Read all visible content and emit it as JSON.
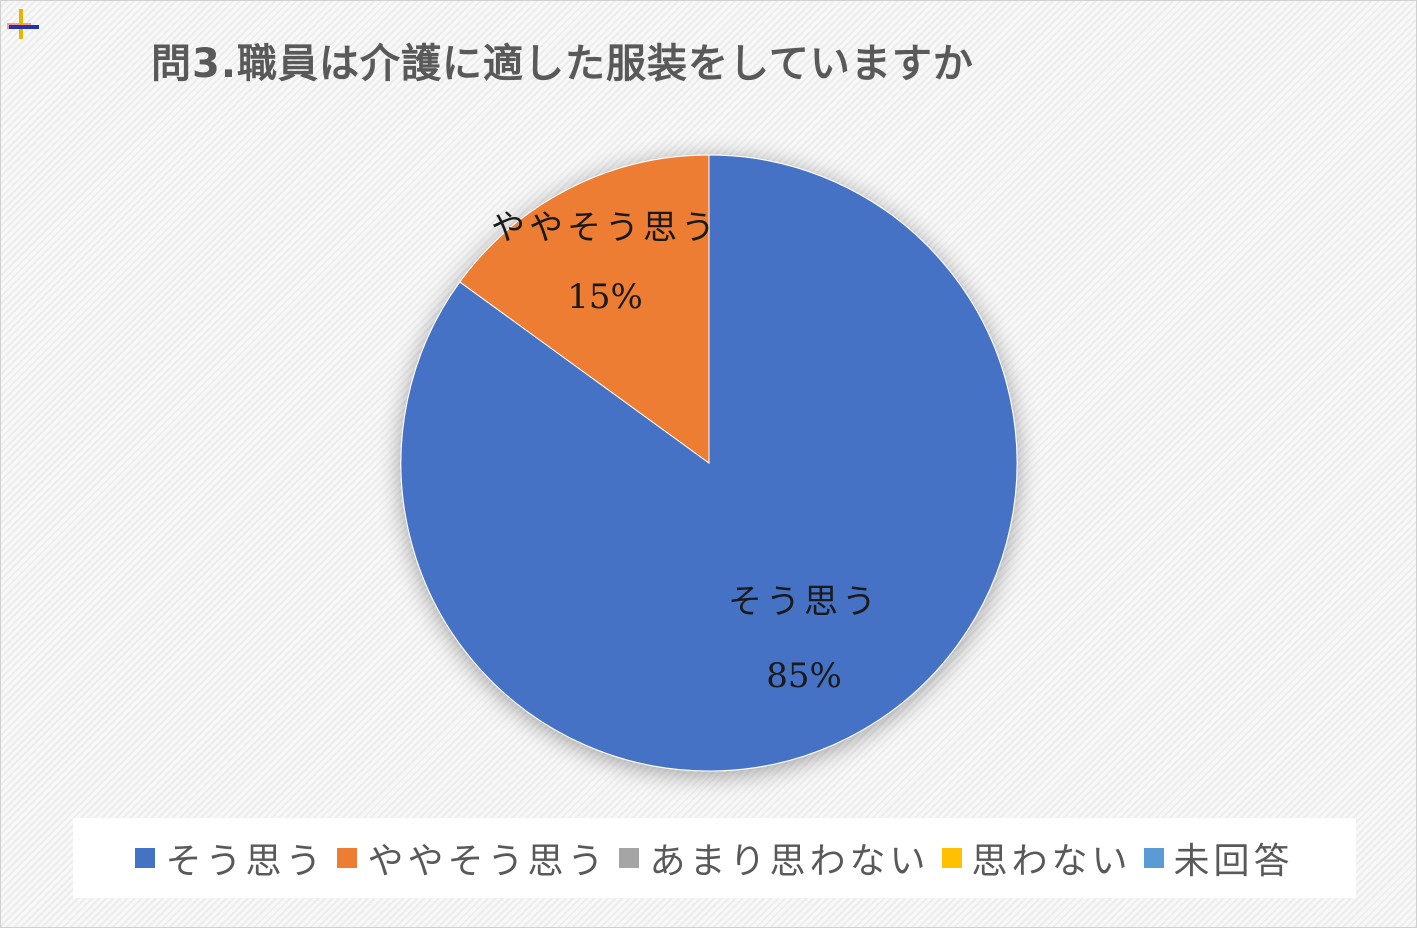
{
  "title": "問3.職員は介護に適した服装をしていますか",
  "colors": {
    "legend_text": "#595959",
    "label_text": "#1a1a1a"
  },
  "chart_data": {
    "type": "pie",
    "title": "問3.職員は介護に適した服装をしていますか",
    "unit": "%",
    "start_angle_deg": 0,
    "direction": "clockwise",
    "legend_position": "bottom",
    "slices": [
      {
        "label": "そう思う",
        "value": 85,
        "color": "#4472C4",
        "data_label": "85%"
      },
      {
        "label": "ややそう思う",
        "value": 15,
        "color": "#ED7D31",
        "data_label": "15%"
      },
      {
        "label": "あまり思わない",
        "value": 0,
        "color": "#A5A5A5"
      },
      {
        "label": "思わない",
        "value": 0,
        "color": "#FFC000"
      },
      {
        "label": "未回答",
        "value": 0,
        "color": "#5B9BD5"
      }
    ]
  }
}
